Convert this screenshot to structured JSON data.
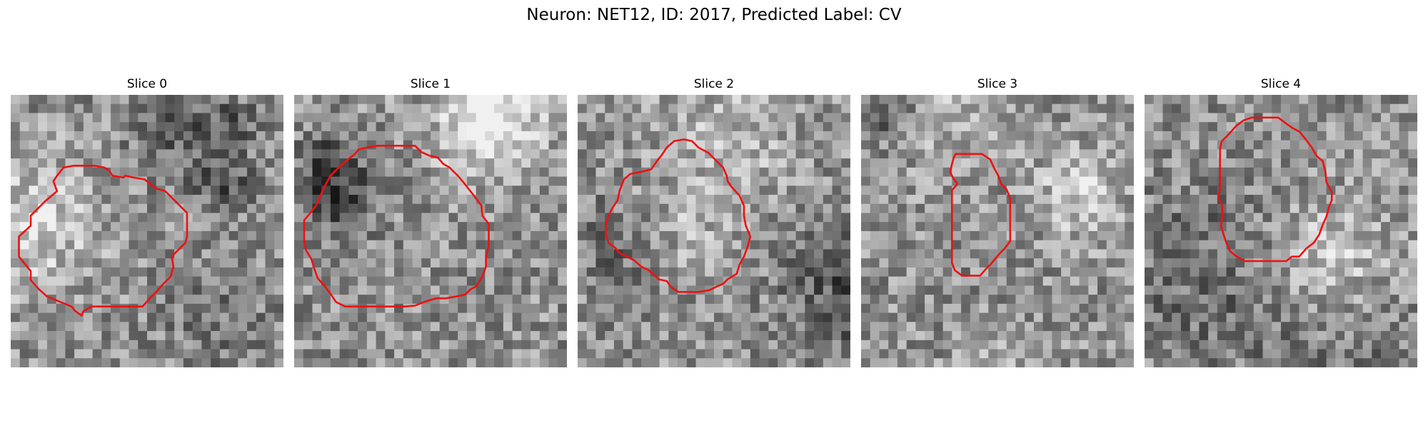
{
  "figure": {
    "title": "Neuron: NET12, ID: 2017, Predicted Label: CV"
  },
  "colors": {
    "contour": "#ee1111",
    "background": "#ffffff"
  },
  "panels": [
    {
      "title": "Slice 0",
      "seed": 11,
      "contour": [
        [
          5.1,
          10.6
        ],
        [
          3.8,
          11.7
        ],
        [
          2.2,
          13.3
        ],
        [
          2.2,
          14.4
        ],
        [
          0.9,
          15.6
        ],
        [
          0.9,
          17.8
        ],
        [
          2.2,
          19.4
        ],
        [
          2.2,
          20.4
        ],
        [
          3.1,
          21.4
        ],
        [
          4.0,
          22.2
        ],
        [
          6.7,
          23.3
        ],
        [
          7.1,
          23.8
        ],
        [
          7.8,
          24.3
        ],
        [
          8.0,
          23.8
        ],
        [
          8.9,
          23.3
        ],
        [
          10.1,
          23.3
        ],
        [
          11.4,
          23.3
        ],
        [
          12.6,
          23.3
        ],
        [
          13.5,
          23.3
        ],
        [
          14.5,
          23.3
        ],
        [
          15.3,
          22.4
        ],
        [
          16.0,
          21.7
        ],
        [
          16.7,
          20.9
        ],
        [
          17.6,
          20.0
        ],
        [
          17.9,
          18.9
        ],
        [
          17.7,
          17.8
        ],
        [
          19.2,
          16.3
        ],
        [
          19.4,
          15.6
        ],
        [
          19.4,
          14.0
        ],
        [
          19.4,
          13.0
        ],
        [
          18.6,
          12.2
        ],
        [
          17.6,
          11.2
        ],
        [
          17.0,
          10.6
        ],
        [
          16.0,
          10.3
        ],
        [
          14.7,
          9.3
        ],
        [
          13.5,
          9.1
        ],
        [
          12.6,
          8.9
        ],
        [
          12.4,
          9.1
        ],
        [
          11.2,
          8.9
        ],
        [
          10.8,
          8.3
        ],
        [
          10.3,
          8.0
        ],
        [
          9.2,
          7.8
        ],
        [
          8.1,
          7.8
        ],
        [
          6.9,
          7.8
        ],
        [
          5.8,
          8.0
        ],
        [
          5.1,
          8.9
        ],
        [
          4.7,
          9.5
        ]
      ]
    },
    {
      "title": "Slice 1",
      "seed": 23,
      "contour": [
        [
          2.4,
          12.2
        ],
        [
          3.1,
          10.6
        ],
        [
          3.4,
          10.0
        ],
        [
          4.0,
          8.9
        ],
        [
          4.7,
          8.2
        ],
        [
          5.8,
          7.2
        ],
        [
          6.7,
          6.5
        ],
        [
          7.1,
          6.0
        ],
        [
          8.0,
          5.8
        ],
        [
          9.2,
          5.6
        ],
        [
          10.1,
          5.6
        ],
        [
          11.2,
          5.6
        ],
        [
          12.2,
          5.6
        ],
        [
          13.3,
          5.6
        ],
        [
          14.0,
          6.3
        ],
        [
          14.9,
          6.7
        ],
        [
          15.8,
          6.9
        ],
        [
          16.4,
          7.6
        ],
        [
          17.1,
          8.0
        ],
        [
          18.0,
          8.9
        ],
        [
          18.6,
          9.6
        ],
        [
          19.3,
          10.5
        ],
        [
          20.0,
          11.4
        ],
        [
          20.6,
          12.2
        ],
        [
          20.7,
          13.3
        ],
        [
          21.4,
          14.2
        ],
        [
          21.4,
          15.3
        ],
        [
          21.4,
          16.7
        ],
        [
          21.1,
          17.8
        ],
        [
          21.1,
          18.9
        ],
        [
          20.7,
          20.0
        ],
        [
          20.0,
          21.1
        ],
        [
          19.4,
          21.4
        ],
        [
          18.8,
          22.0
        ],
        [
          17.8,
          22.2
        ],
        [
          16.7,
          22.4
        ],
        [
          15.6,
          22.4
        ],
        [
          14.3,
          22.8
        ],
        [
          13.3,
          23.2
        ],
        [
          12.2,
          23.3
        ],
        [
          11.1,
          23.3
        ],
        [
          10.0,
          23.3
        ],
        [
          8.9,
          23.3
        ],
        [
          7.8,
          23.3
        ],
        [
          6.7,
          23.3
        ],
        [
          5.6,
          23.3
        ],
        [
          4.6,
          22.8
        ],
        [
          4.0,
          21.9
        ],
        [
          3.4,
          21.1
        ],
        [
          2.6,
          20.2
        ],
        [
          2.2,
          19.1
        ],
        [
          1.9,
          18.1
        ],
        [
          1.3,
          17.1
        ],
        [
          1.1,
          16.0
        ],
        [
          1.1,
          14.9
        ],
        [
          1.1,
          13.8
        ],
        [
          1.7,
          13.1
        ]
      ]
    },
    {
      "title": "Slice 2",
      "seed": 37,
      "contour": [
        [
          5.1,
          9.3
        ],
        [
          5.8,
          8.7
        ],
        [
          6.9,
          8.5
        ],
        [
          8.1,
          8.2
        ],
        [
          8.7,
          7.3
        ],
        [
          9.2,
          6.7
        ],
        [
          9.8,
          5.8
        ],
        [
          10.6,
          5.1
        ],
        [
          11.7,
          4.9
        ],
        [
          12.6,
          5.1
        ],
        [
          13.3,
          5.8
        ],
        [
          14.4,
          6.4
        ],
        [
          15.3,
          7.3
        ],
        [
          16.0,
          8.0
        ],
        [
          16.4,
          8.9
        ],
        [
          16.5,
          9.5
        ],
        [
          16.9,
          10.1
        ],
        [
          17.8,
          11.1
        ],
        [
          18.3,
          12.2
        ],
        [
          18.3,
          13.3
        ],
        [
          18.5,
          14.4
        ],
        [
          19.0,
          15.6
        ],
        [
          18.7,
          16.7
        ],
        [
          18.3,
          17.8
        ],
        [
          17.8,
          18.7
        ],
        [
          17.5,
          19.7
        ],
        [
          16.5,
          20.3
        ],
        [
          16.0,
          20.8
        ],
        [
          15.3,
          21.1
        ],
        [
          14.5,
          21.5
        ],
        [
          13.3,
          21.7
        ],
        [
          12.2,
          21.7
        ],
        [
          11.1,
          21.7
        ],
        [
          10.3,
          21.2
        ],
        [
          9.8,
          20.5
        ],
        [
          8.9,
          20.3
        ],
        [
          8.4,
          19.8
        ],
        [
          7.8,
          19.3
        ],
        [
          7.0,
          18.9
        ],
        [
          6.2,
          18.2
        ],
        [
          5.6,
          17.9
        ],
        [
          4.6,
          17.4
        ],
        [
          4.1,
          16.8
        ],
        [
          3.4,
          16.3
        ],
        [
          3.1,
          15.3
        ],
        [
          3.1,
          14.2
        ],
        [
          3.4,
          13.3
        ],
        [
          3.8,
          12.5
        ],
        [
          4.4,
          11.6
        ],
        [
          4.6,
          10.6
        ]
      ]
    },
    {
      "title": "Slice 3",
      "seed": 53,
      "contour": [
        [
          10.4,
          6.5
        ],
        [
          11.1,
          6.5
        ],
        [
          12.2,
          6.5
        ],
        [
          13.3,
          6.5
        ],
        [
          14.2,
          7.1
        ],
        [
          14.7,
          8.2
        ],
        [
          15.1,
          8.9
        ],
        [
          15.4,
          9.8
        ],
        [
          16.0,
          10.4
        ],
        [
          16.4,
          11.4
        ],
        [
          16.4,
          12.6
        ],
        [
          16.4,
          13.8
        ],
        [
          16.4,
          15.0
        ],
        [
          16.4,
          16.1
        ],
        [
          15.8,
          16.9
        ],
        [
          15.3,
          17.4
        ],
        [
          14.7,
          18.1
        ],
        [
          14.3,
          18.6
        ],
        [
          13.7,
          19.2
        ],
        [
          13.1,
          19.9
        ],
        [
          12.2,
          19.9
        ],
        [
          11.1,
          19.9
        ],
        [
          10.3,
          19.3
        ],
        [
          10.0,
          18.5
        ],
        [
          10.0,
          17.1
        ],
        [
          10.0,
          16.0
        ],
        [
          10.0,
          14.9
        ],
        [
          10.0,
          13.8
        ],
        [
          10.0,
          12.7
        ],
        [
          10.0,
          11.6
        ],
        [
          10.0,
          10.5
        ],
        [
          10.6,
          9.8
        ],
        [
          10.1,
          9.1
        ],
        [
          9.8,
          8.5
        ],
        [
          10.0,
          7.6
        ],
        [
          10.2,
          6.9
        ]
      ]
    },
    {
      "title": "Slice 4",
      "seed": 71,
      "contour": [
        [
          8.5,
          5.1
        ],
        [
          9.3,
          4.3
        ],
        [
          10.1,
          3.4
        ],
        [
          10.9,
          2.8
        ],
        [
          11.8,
          2.5
        ],
        [
          12.8,
          2.5
        ],
        [
          13.8,
          2.5
        ],
        [
          14.7,
          2.5
        ],
        [
          15.5,
          3.1
        ],
        [
          16.2,
          3.6
        ],
        [
          17.1,
          4.1
        ],
        [
          17.8,
          5.0
        ],
        [
          18.4,
          5.8
        ],
        [
          18.9,
          6.7
        ],
        [
          19.6,
          7.3
        ],
        [
          19.9,
          8.5
        ],
        [
          20.0,
          9.6
        ],
        [
          20.6,
          10.7
        ],
        [
          20.6,
          11.6
        ],
        [
          20.3,
          12.3
        ],
        [
          20.0,
          13.4
        ],
        [
          19.6,
          14.3
        ],
        [
          19.2,
          15.4
        ],
        [
          18.6,
          16.3
        ],
        [
          17.8,
          16.9
        ],
        [
          17.0,
          17.8
        ],
        [
          16.2,
          17.8
        ],
        [
          15.6,
          18.3
        ],
        [
          14.7,
          18.3
        ],
        [
          13.8,
          18.3
        ],
        [
          12.8,
          18.3
        ],
        [
          11.8,
          18.3
        ],
        [
          11.0,
          18.3
        ],
        [
          10.0,
          17.7
        ],
        [
          9.4,
          17.2
        ],
        [
          9.0,
          16.3
        ],
        [
          8.7,
          15.4
        ],
        [
          8.4,
          14.4
        ],
        [
          8.6,
          13.2
        ],
        [
          8.5,
          12.1
        ],
        [
          8.1,
          11.3
        ],
        [
          8.3,
          10.3
        ],
        [
          8.3,
          9.3
        ],
        [
          8.3,
          8.1
        ],
        [
          8.3,
          7.1
        ],
        [
          8.3,
          6.0
        ]
      ]
    }
  ]
}
